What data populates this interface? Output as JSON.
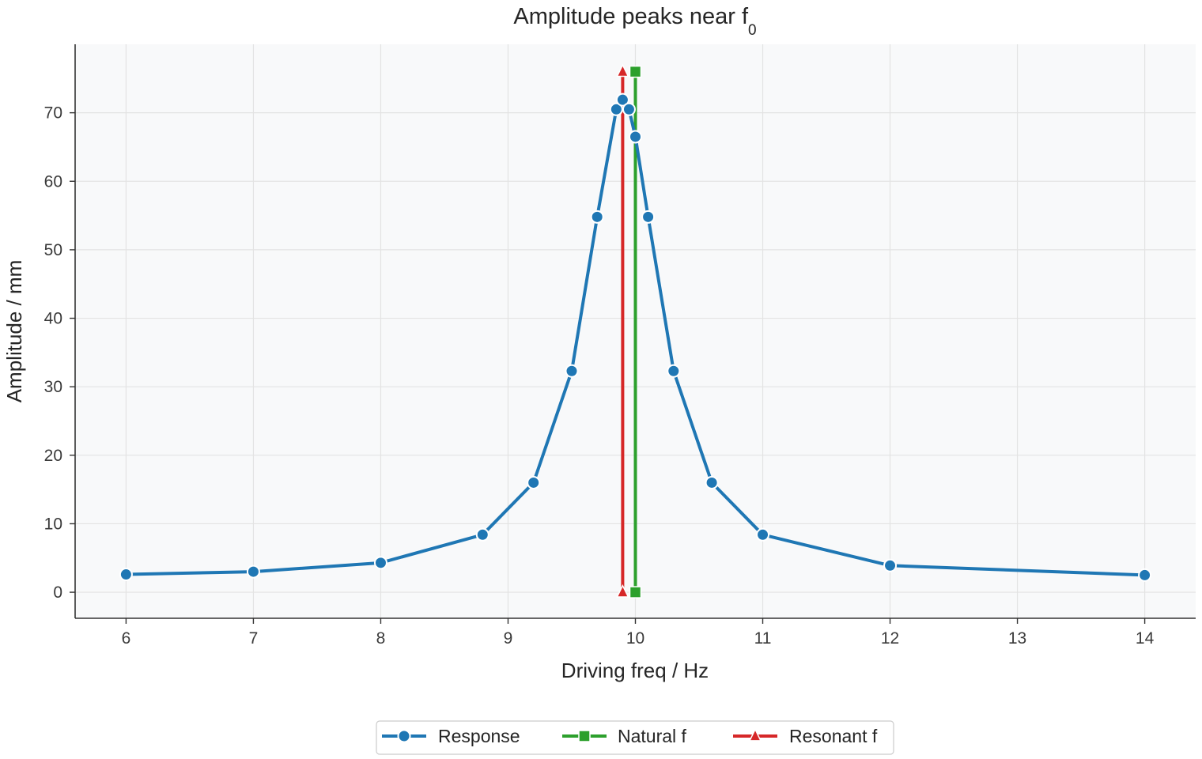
{
  "chart_data": {
    "type": "line",
    "title": "Amplitude peaks near f",
    "title_subscript": "0",
    "xlabel": "Driving freq / Hz",
    "ylabel": "Amplitude / mm",
    "xlim": [
      5.6,
      14.4
    ],
    "ylim": [
      -3.8,
      80
    ],
    "xticks": [
      6,
      7,
      8,
      9,
      10,
      11,
      12,
      13,
      14
    ],
    "yticks": [
      0,
      10,
      20,
      30,
      40,
      50,
      60,
      70
    ],
    "grid": true,
    "legend_position": "bottom-center",
    "series": [
      {
        "name": "Response",
        "color": "#1f77b4",
        "marker": "circle",
        "x": [
          6.0,
          7.0,
          8.0,
          8.8,
          9.2,
          9.5,
          9.7,
          9.85,
          9.9,
          9.95,
          10.0,
          10.1,
          10.3,
          10.6,
          11.0,
          12.0,
          14.0
        ],
        "y": [
          2.6,
          3.0,
          4.3,
          8.4,
          16.0,
          32.3,
          54.8,
          70.5,
          71.9,
          70.5,
          66.5,
          54.8,
          32.3,
          16.0,
          8.4,
          3.9,
          2.5
        ]
      },
      {
        "name": "Natural f",
        "color": "#2ca02c",
        "marker": "square",
        "x": [
          10.0,
          10.0
        ],
        "y": [
          0,
          76.0
        ]
      },
      {
        "name": "Resonant f",
        "color": "#d62728",
        "marker": "triangle",
        "x": [
          9.9,
          9.9
        ],
        "y": [
          0,
          76.0
        ]
      }
    ]
  }
}
